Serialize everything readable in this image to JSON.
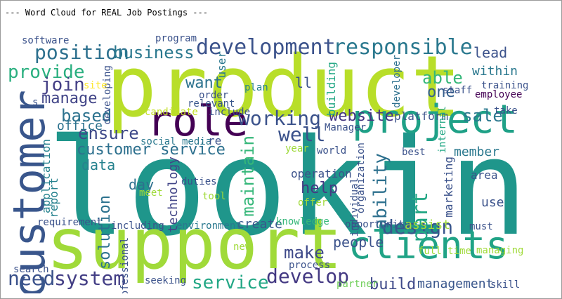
{
  "header": {
    "title": "--- Word Cloud for REAL Job Postings ---"
  },
  "wordcloud": {
    "words": [
      {
        "text": "looking",
        "color": "#1f968b"
      },
      {
        "text": "product",
        "color": "#b8de29"
      },
      {
        "text": "support",
        "color": "#a0da39"
      },
      {
        "text": "customer",
        "color": "#39568c"
      },
      {
        "text": "project",
        "color": "#1fa187"
      },
      {
        "text": "clients",
        "color": "#20a386"
      },
      {
        "text": "role",
        "color": "#440154"
      },
      {
        "text": "development",
        "color": "#3b528b"
      },
      {
        "text": "responsible",
        "color": "#2a788e"
      },
      {
        "text": "position",
        "color": "#2d708e"
      },
      {
        "text": "business",
        "color": "#2a788e"
      },
      {
        "text": "provide",
        "color": "#29af7f"
      },
      {
        "text": "join",
        "color": "#433e85"
      },
      {
        "text": "manage",
        "color": "#414487"
      },
      {
        "text": "based",
        "color": "#2c728e"
      },
      {
        "text": "working",
        "color": "#3b528b"
      },
      {
        "text": "ensure",
        "color": "#3e4989"
      },
      {
        "text": "customer service",
        "color": "#2d708e"
      },
      {
        "text": "well",
        "color": "#3b528b"
      },
      {
        "text": "website",
        "color": "#453781"
      },
      {
        "text": "sale",
        "color": "#2a788e"
      },
      {
        "text": "able",
        "color": "#35b779"
      },
      {
        "text": "lead",
        "color": "#3b528b"
      },
      {
        "text": "within",
        "color": "#2a788e"
      },
      {
        "text": "one",
        "color": "#355f8d"
      },
      {
        "text": "want",
        "color": "#2c728e"
      },
      {
        "text": "design",
        "color": "#39568c"
      },
      {
        "text": "make",
        "color": "#3e4989"
      },
      {
        "text": "help",
        "color": "#443983"
      },
      {
        "text": "part",
        "color": "#22a785"
      },
      {
        "text": "ability",
        "color": "#2d708e"
      },
      {
        "text": "maintain",
        "color": "#35b779"
      },
      {
        "text": "day",
        "color": "#2d708e"
      },
      {
        "text": "service",
        "color": "#22a785"
      },
      {
        "text": "develop",
        "color": "#443983"
      },
      {
        "text": "need",
        "color": "#3b528b"
      },
      {
        "text": "system",
        "color": "#433e85"
      },
      {
        "text": "build",
        "color": "#3e4989"
      },
      {
        "text": "management",
        "color": "#39568c"
      },
      {
        "text": "people",
        "color": "#3b528b"
      },
      {
        "text": "create",
        "color": "#38588c"
      },
      {
        "text": "solution",
        "color": "#2c728e"
      },
      {
        "text": "data",
        "color": "#26828e"
      },
      {
        "text": "office",
        "color": "#2c728e"
      },
      {
        "text": "technology",
        "color": "#414487"
      },
      {
        "text": "software",
        "color": "#3b528b"
      },
      {
        "text": "program",
        "color": "#3b528b"
      },
      {
        "text": "ll",
        "color": "#3b528b"
      },
      {
        "text": "plan",
        "color": "#26828e"
      },
      {
        "text": "user",
        "color": "#2a788e"
      },
      {
        "text": "order",
        "color": "#3b528b"
      },
      {
        "text": "relevant",
        "color": "#39568c"
      },
      {
        "text": "include",
        "color": "#3b528b"
      },
      {
        "text": "candidate",
        "color": "#c2df23"
      },
      {
        "text": "social media",
        "color": "#2a788e"
      },
      {
        "text": "re",
        "color": "#3b528b"
      },
      {
        "text": "year",
        "color": "#9fda3a"
      },
      {
        "text": "Manager",
        "color": "#3b528b"
      },
      {
        "text": "world",
        "color": "#3b528b"
      },
      {
        "text": "developer",
        "color": "#2d708e"
      },
      {
        "text": "building",
        "color": "#22a785"
      },
      {
        "text": "platform",
        "color": "#3b528b"
      },
      {
        "text": "staff",
        "color": "#3b528b"
      },
      {
        "text": "training",
        "color": "#3b528b"
      },
      {
        "text": "employee",
        "color": "#440154"
      },
      {
        "text": "take",
        "color": "#3b528b"
      },
      {
        "text": "internal",
        "color": "#22a785"
      },
      {
        "text": "member",
        "color": "#2a788e"
      },
      {
        "text": "best",
        "color": "#3b528b"
      },
      {
        "text": "organization",
        "color": "#3b528b"
      },
      {
        "text": "operation",
        "color": "#3b528b"
      },
      {
        "text": "individual",
        "color": "#3b528b"
      },
      {
        "text": "marketing",
        "color": "#3b528b"
      },
      {
        "text": "area",
        "color": "#3b528b"
      },
      {
        "text": "use",
        "color": "#3b528b"
      },
      {
        "text": "offer",
        "color": "#a0da39"
      },
      {
        "text": "must",
        "color": "#3b528b"
      },
      {
        "text": "opportunity",
        "color": "#3b528b"
      },
      {
        "text": "assist",
        "color": "#a0da39"
      },
      {
        "text": "knowledge",
        "color": "#35b779"
      },
      {
        "text": "full time",
        "color": "#a0da39"
      },
      {
        "text": "managing",
        "color": "#a0da39"
      },
      {
        "text": "process",
        "color": "#3b528b"
      },
      {
        "text": "partner",
        "color": "#6ece58"
      },
      {
        "text": "skill",
        "color": "#3b528b"
      },
      {
        "text": "seeking",
        "color": "#3b528b"
      },
      {
        "text": "professional",
        "color": "#3b528b"
      },
      {
        "text": "search",
        "color": "#3b528b"
      },
      {
        "text": "including",
        "color": "#3b528b"
      },
      {
        "text": "requirement",
        "color": "#3b528b"
      },
      {
        "text": "environment",
        "color": "#2a788e"
      },
      {
        "text": "new",
        "color": "#a0da39"
      },
      {
        "text": "tool",
        "color": "#a0da39"
      },
      {
        "text": "meet",
        "color": "#a0da39"
      },
      {
        "text": "duties",
        "color": "#3b528b"
      },
      {
        "text": "report",
        "color": "#26828e"
      },
      {
        "text": "application",
        "color": "#26828e"
      },
      {
        "text": "developing",
        "color": "#3b528b"
      },
      {
        "text": "site",
        "color": "#fde725"
      },
      {
        "text": "s",
        "color": "#3b528b"
      }
    ]
  }
}
